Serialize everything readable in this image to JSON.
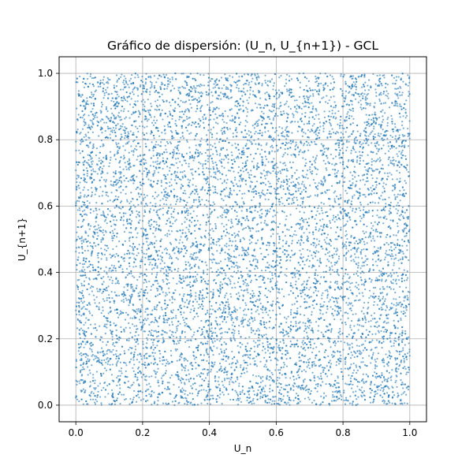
{
  "chart_data": {
    "type": "scatter",
    "title": "Gráfico de dispersión: (U_n, U_{n+1}) - GCL",
    "xlabel": "U_n",
    "ylabel": "U_{n+1}",
    "xlim": [
      -0.05,
      1.05
    ],
    "ylim": [
      -0.05,
      1.05
    ],
    "xticks": [
      "0.0",
      "0.2",
      "0.4",
      "0.6",
      "0.8",
      "1.0"
    ],
    "yticks": [
      "0.0",
      "0.2",
      "0.4",
      "0.6",
      "0.8",
      "1.0"
    ],
    "grid": true,
    "point_color": "#1f77b4",
    "point_count": 10000,
    "point_distribution": "uniform over [0,1] x [0,1]",
    "series": [
      {
        "values_sample": [
          [
            0.031,
            0.912
          ],
          [
            0.118,
            0.447
          ],
          [
            0.254,
            0.873
          ],
          [
            0.377,
            0.135
          ],
          [
            0.462,
            0.598
          ],
          [
            0.519,
            0.021
          ],
          [
            0.604,
            0.766
          ],
          [
            0.688,
            0.312
          ],
          [
            0.745,
            0.954
          ],
          [
            0.823,
            0.489
          ],
          [
            0.897,
            0.173
          ],
          [
            0.962,
            0.681
          ],
          [
            0.085,
            0.238
          ],
          [
            0.192,
            0.705
          ],
          [
            0.311,
            0.392
          ],
          [
            0.436,
            0.987
          ],
          [
            0.553,
            0.254
          ],
          [
            0.671,
            0.543
          ],
          [
            0.782,
            0.067
          ],
          [
            0.914,
            0.836
          ]
        ]
      }
    ]
  }
}
